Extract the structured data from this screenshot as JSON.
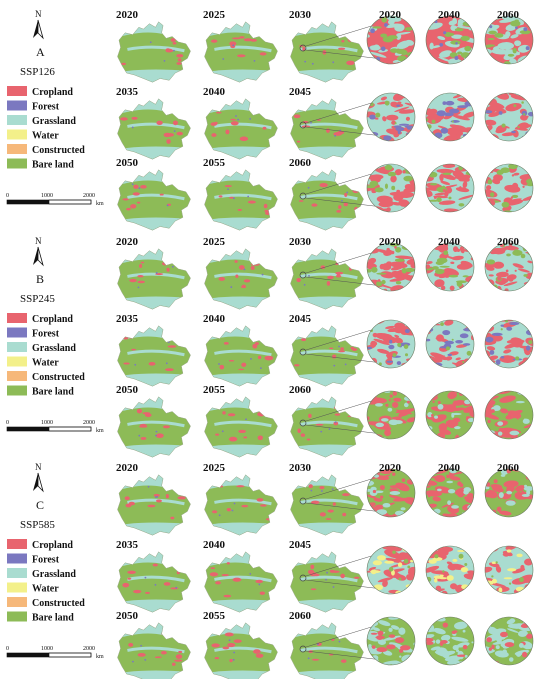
{
  "colors": {
    "cropland": "#e8646e",
    "forest": "#7b78c0",
    "grassland": "#a9dcd0",
    "water": "#f3f08a",
    "constructed": "#f6b87a",
    "bare_land": "#8dbb57"
  },
  "panels": [
    {
      "letter": "A",
      "scenario": "SSP126",
      "map_years": [
        [
          "2020",
          "2025",
          "2030"
        ],
        [
          "2035",
          "2040",
          "2045"
        ],
        [
          "2050",
          "2055",
          "2060"
        ]
      ],
      "zoom_years": [
        "2020",
        "2040",
        "2060"
      ],
      "zoom_styles": [
        "dense-crop",
        "crop-forest",
        "crop-grass"
      ]
    },
    {
      "letter": "B",
      "scenario": "SSP245",
      "map_years": [
        [
          "2020",
          "2025",
          "2030"
        ],
        [
          "2035",
          "2040",
          "2045"
        ],
        [
          "2050",
          "2055",
          "2060"
        ]
      ],
      "zoom_years": [
        "2020",
        "2040",
        "2060"
      ],
      "zoom_styles": [
        "crop-grass",
        "crop-forest",
        "bare-crop"
      ]
    },
    {
      "letter": "C",
      "scenario": "SSP585",
      "map_years": [
        [
          "2020",
          "2025",
          "2030"
        ],
        [
          "2035",
          "2040",
          "2045"
        ],
        [
          "2050",
          "2055",
          "2060"
        ]
      ],
      "zoom_years": [
        "2020",
        "2040",
        "2060"
      ],
      "zoom_styles": [
        "bare-crop",
        "crop-water",
        "bare-grass"
      ]
    }
  ],
  "legend": [
    {
      "key": "cropland",
      "label": "Cropland"
    },
    {
      "key": "forest",
      "label": "Forest"
    },
    {
      "key": "grassland",
      "label": "Grassland"
    },
    {
      "key": "water",
      "label": "Water"
    },
    {
      "key": "constructed",
      "label": "Constructed"
    },
    {
      "key": "bare_land",
      "label": "Bare land"
    }
  ],
  "scale_bar": {
    "ticks": [
      "0",
      "1000",
      "2000"
    ],
    "unit": "km"
  },
  "north_label": "N"
}
